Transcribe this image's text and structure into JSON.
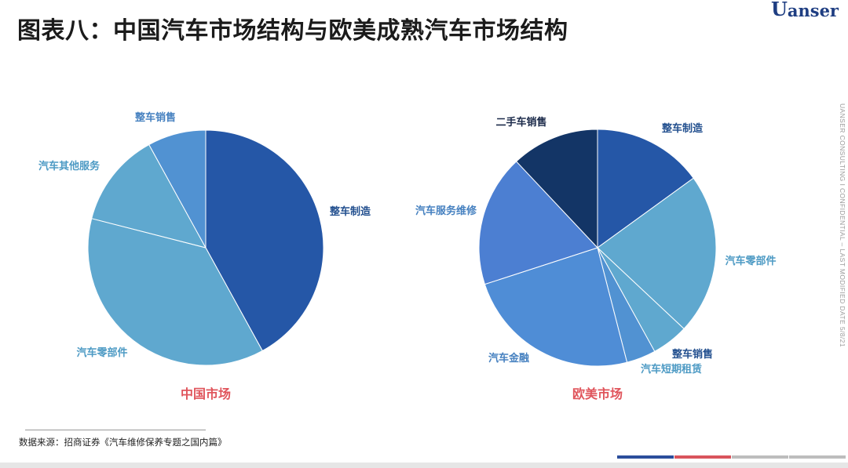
{
  "header": {
    "title": "图表八：中国汽车市场结构与欧美成熟汽车市场结构",
    "logo_text": "anser",
    "logo_mark": "U"
  },
  "side_text": "UANSER CONSULTING  I  CONFIDENTIAL – LAST MODIFIED DATE 5/8/21",
  "footer": {
    "source": "数据来源：招商证券《汽车维修保养专题之国内篇》",
    "bar_colors": [
      "#2b4e9b",
      "#d9545c",
      "#bdbdbd",
      "#bdbdbd"
    ]
  },
  "chart_data": [
    {
      "type": "pie",
      "caption": "中国市场",
      "start_angle_deg": 0,
      "slices": [
        {
          "label": "整车制造",
          "value": 42,
          "color": "#2557a7",
          "label_color": "#23508f"
        },
        {
          "label": "汽车零部件",
          "value": 37,
          "color": "#5fa8cf",
          "label_color": "#4d9ac4"
        },
        {
          "label": "汽车其他服务",
          "value": 13,
          "color": "#5fa8cf",
          "label_color": "#4d9ac4"
        },
        {
          "label": "整车销售",
          "value": 8,
          "color": "#5192d2",
          "label_color": "#4681c0"
        }
      ]
    },
    {
      "type": "pie",
      "caption": "欧美市场",
      "start_angle_deg": 0,
      "slices": [
        {
          "label": "整车制造",
          "value": 15,
          "color": "#2557a7",
          "label_color": "#23508f"
        },
        {
          "label": "汽车零部件",
          "value": 22,
          "color": "#5fa8cf",
          "label_color": "#4d9ac4"
        },
        {
          "label": "整车销售",
          "value": 5,
          "color": "#5fa8cf",
          "label_color": "#23508f"
        },
        {
          "label": "汽车短期租赁",
          "value": 4,
          "color": "#5192d2",
          "label_color": "#4d9ac4"
        },
        {
          "label": "汽车金融",
          "value": 24,
          "color": "#4f8dd6",
          "label_color": "#4681c0"
        },
        {
          "label": "汽车服务维修",
          "value": 18,
          "color": "#4c7fd2",
          "label_color": "#4681c0"
        },
        {
          "label": "二手车销售",
          "value": 12,
          "color": "#133566",
          "label_color": "#1b2a4a"
        }
      ]
    }
  ]
}
